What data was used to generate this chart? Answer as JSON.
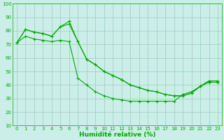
{
  "line_max": {
    "x": [
      0,
      1,
      2,
      3,
      4,
      5,
      6,
      7,
      8,
      9,
      10,
      11,
      12,
      13,
      14,
      15,
      16,
      17,
      18,
      19,
      20,
      21,
      22,
      23
    ],
    "y": [
      71,
      76,
      74,
      73,
      72,
      83,
      87,
      73,
      58,
      50,
      47,
      44,
      40,
      37,
      35,
      33,
      31,
      30,
      29,
      33,
      35,
      39,
      42,
      42
    ]
  },
  "line_mid": {
    "x": [
      0,
      1,
      2,
      3,
      4,
      5,
      6,
      7,
      8,
      9,
      10,
      11,
      12,
      13,
      14,
      15,
      16,
      17,
      18,
      19,
      20,
      21,
      22,
      23
    ],
    "y": [
      71,
      81,
      79,
      78,
      76,
      83,
      85,
      72,
      59,
      55,
      50,
      47,
      44,
      40,
      38,
      36,
      35,
      33,
      32,
      32,
      34,
      39,
      43,
      43
    ]
  },
  "line_top": {
    "x": [
      0,
      1,
      2,
      3,
      4,
      5,
      6,
      7,
      8,
      9,
      10,
      11,
      12,
      13,
      14,
      15,
      16,
      17,
      18,
      19,
      20,
      21,
      22,
      23
    ],
    "y": [
      71,
      81,
      79,
      78,
      76,
      83,
      87,
      72,
      59,
      55,
      50,
      47,
      44,
      40,
      38,
      36,
      35,
      33,
      32,
      32,
      34,
      39,
      43,
      43
    ]
  },
  "line_low": {
    "x": [
      0,
      1,
      2,
      3,
      4,
      5,
      6,
      7,
      8,
      9,
      10,
      11,
      12,
      13,
      14,
      15,
      16,
      17,
      18,
      19,
      20,
      21,
      22,
      23
    ],
    "y": [
      71,
      76,
      74,
      73,
      72,
      73,
      72,
      45,
      40,
      35,
      32,
      30,
      29,
      28,
      28,
      28,
      28,
      28,
      28,
      33,
      35,
      39,
      42,
      42
    ]
  },
  "color": "#00aa00",
  "bg_color": "#cceee8",
  "grid_color": "#99ccbb",
  "xlabel": "Humidité relative (%)",
  "ylim": [
    10,
    100
  ],
  "xlim": [
    -0.5,
    23.5
  ],
  "yticks": [
    10,
    20,
    30,
    40,
    50,
    60,
    70,
    80,
    90,
    100
  ],
  "xticks": [
    0,
    1,
    2,
    3,
    4,
    5,
    6,
    7,
    8,
    9,
    10,
    11,
    12,
    13,
    14,
    15,
    16,
    17,
    18,
    19,
    20,
    21,
    22,
    23
  ],
  "xlabel_fontsize": 6.5,
  "tick_fontsize": 5
}
